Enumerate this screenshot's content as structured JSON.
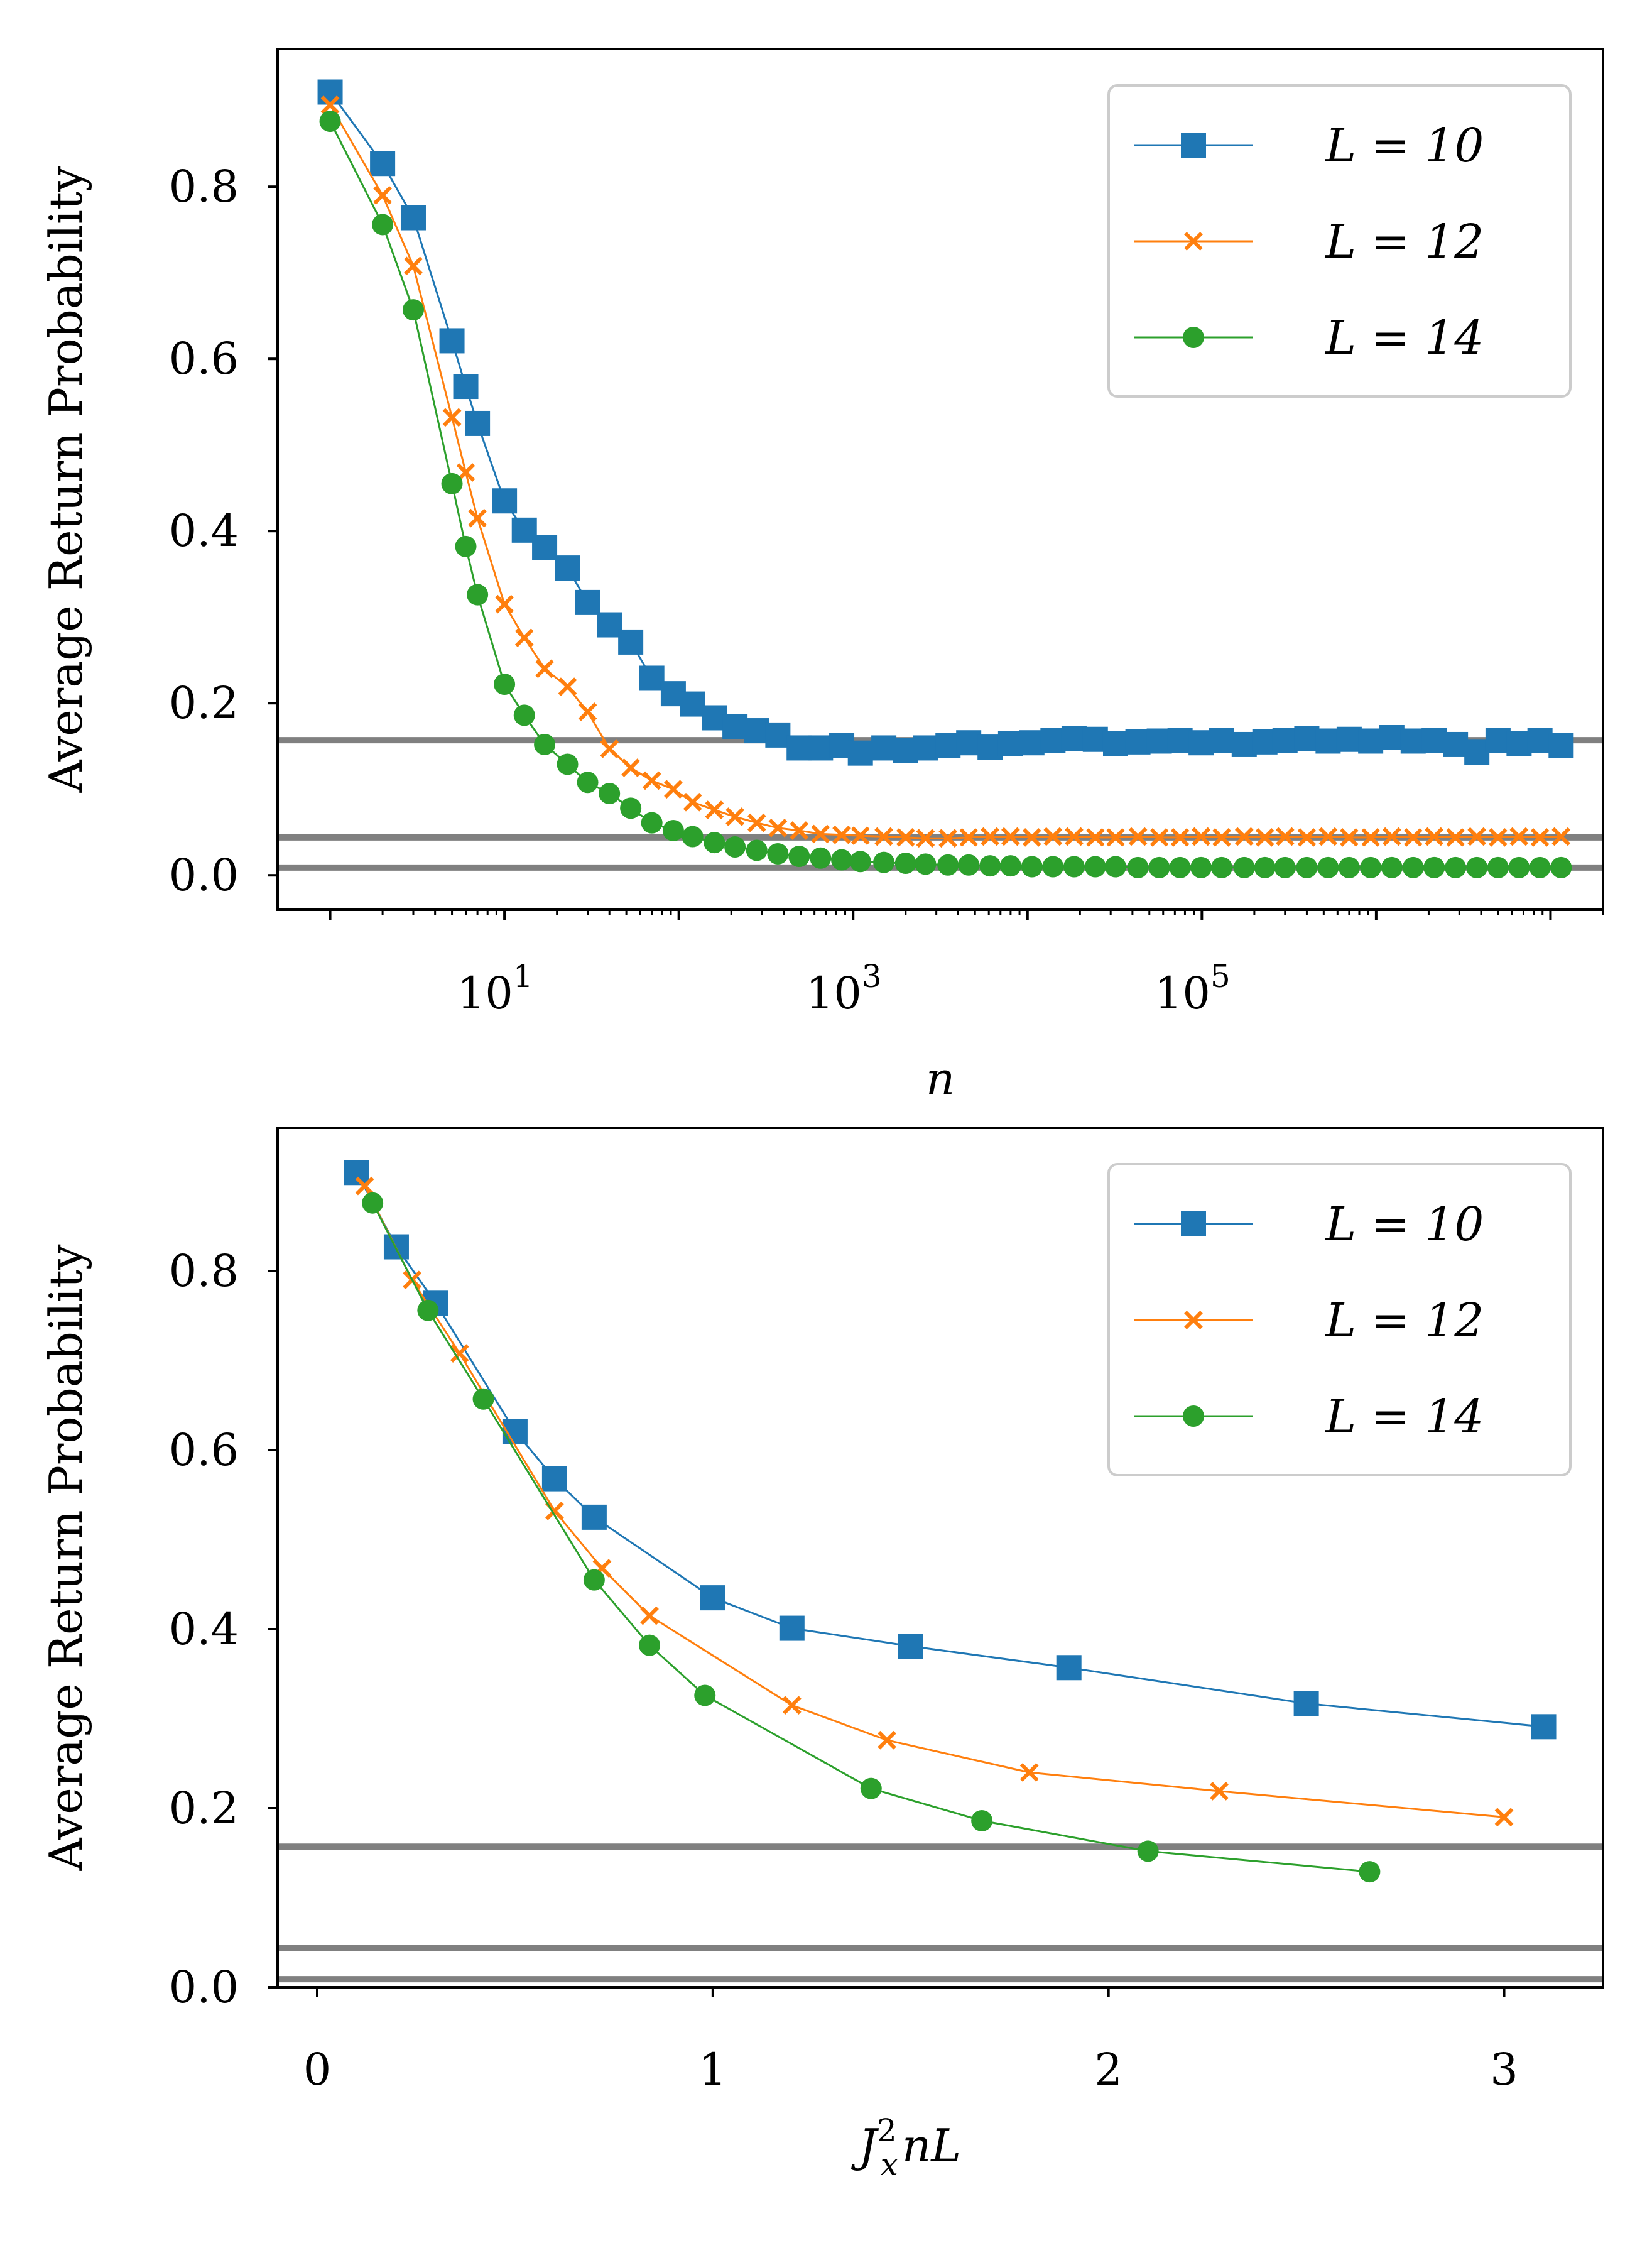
{
  "chart_data": [
    {
      "type": "line",
      "xscale": "log",
      "xlabel": "n",
      "ylabel": "Average Return Probability",
      "xlim": [
        0.5,
        20000000
      ],
      "ylim": [
        -0.04,
        0.96
      ],
      "yticks": [
        0.0,
        0.2,
        0.4,
        0.6,
        0.8
      ],
      "ytick_labels": [
        "0.0",
        "0.2",
        "0.4",
        "0.6",
        "0.8"
      ],
      "xticks": [
        10,
        1000,
        100000
      ],
      "xtick_base": [
        "10",
        "10",
        "10"
      ],
      "xtick_exp": [
        "1",
        "3",
        "5"
      ],
      "legend": [
        "L = 10",
        "L = 12",
        "L = 14"
      ],
      "legend_location": "upper right",
      "reference_lines": [
        0.157,
        0.044,
        0.009
      ],
      "series": [
        {
          "name": "L = 10",
          "color": "#1f77b4",
          "marker": "square",
          "x": [
            1,
            2,
            3,
            5,
            6,
            7,
            10,
            13,
            17,
            23,
            30,
            40,
            53,
            70,
            93,
            120,
            160,
            210,
            280,
            370,
            490,
            650,
            860,
            1100,
            1500,
            2000,
            2600,
            3500,
            4600,
            6100,
            8000,
            10600,
            14000,
            18500,
            24500,
            32000,
            43000,
            57000,
            75000,
            99000,
            130000,
            175000,
            230000,
            300000,
            400000,
            530000,
            700000,
            930000,
            1230000,
            1630000,
            2150000,
            2850000,
            3780000,
            5000000,
            6600000,
            8700000,
            11500000
          ],
          "y": [
            0.91,
            0.827,
            0.764,
            0.621,
            0.568,
            0.525,
            0.435,
            0.401,
            0.381,
            0.357,
            0.317,
            0.291,
            0.271,
            0.229,
            0.211,
            0.199,
            0.183,
            0.173,
            0.168,
            0.163,
            0.148,
            0.148,
            0.151,
            0.142,
            0.148,
            0.145,
            0.148,
            0.151,
            0.154,
            0.149,
            0.153,
            0.154,
            0.157,
            0.159,
            0.158,
            0.153,
            0.155,
            0.156,
            0.157,
            0.154,
            0.157,
            0.152,
            0.155,
            0.157,
            0.159,
            0.156,
            0.158,
            0.156,
            0.16,
            0.156,
            0.157,
            0.152,
            0.143,
            0.157,
            0.153,
            0.157,
            0.151
          ]
        },
        {
          "name": "L = 12",
          "color": "#ff7f0e",
          "marker": "x",
          "x": [
            1,
            2,
            3,
            5,
            6,
            7,
            10,
            13,
            17,
            23,
            30,
            40,
            53,
            70,
            93,
            120,
            160,
            210,
            280,
            370,
            490,
            650,
            860,
            1100,
            1500,
            2000,
            2600,
            3500,
            4600,
            6100,
            8000,
            10600,
            14000,
            18500,
            24500,
            32000,
            43000,
            57000,
            75000,
            99000,
            130000,
            175000,
            230000,
            300000,
            400000,
            530000,
            700000,
            930000,
            1230000,
            1630000,
            2150000,
            2850000,
            3780000,
            5000000,
            6600000,
            8700000,
            11500000
          ],
          "y": [
            0.895,
            0.79,
            0.708,
            0.532,
            0.468,
            0.415,
            0.315,
            0.276,
            0.24,
            0.219,
            0.19,
            0.147,
            0.125,
            0.11,
            0.1,
            0.085,
            0.076,
            0.068,
            0.061,
            0.055,
            0.052,
            0.048,
            0.047,
            0.046,
            0.045,
            0.044,
            0.043,
            0.043,
            0.044,
            0.045,
            0.045,
            0.044,
            0.045,
            0.045,
            0.044,
            0.044,
            0.045,
            0.044,
            0.044,
            0.045,
            0.044,
            0.045,
            0.044,
            0.045,
            0.044,
            0.045,
            0.044,
            0.044,
            0.045,
            0.044,
            0.045,
            0.044,
            0.045,
            0.044,
            0.045,
            0.044,
            0.045
          ]
        },
        {
          "name": "L = 14",
          "color": "#2ca02c",
          "marker": "circle",
          "x": [
            1,
            2,
            3,
            5,
            6,
            7,
            10,
            13,
            17,
            23,
            30,
            40,
            53,
            70,
            93,
            120,
            160,
            210,
            280,
            370,
            490,
            650,
            860,
            1100,
            1500,
            2000,
            2600,
            3500,
            4600,
            6100,
            8000,
            10600,
            14000,
            18500,
            24500,
            32000,
            43000,
            57000,
            75000,
            99000,
            130000,
            175000,
            230000,
            300000,
            400000,
            530000,
            700000,
            930000,
            1230000,
            1630000,
            2150000,
            2850000,
            3780000,
            5000000,
            6600000,
            8700000,
            11500000
          ],
          "y": [
            0.876,
            0.756,
            0.657,
            0.455,
            0.382,
            0.326,
            0.222,
            0.186,
            0.152,
            0.129,
            0.108,
            0.095,
            0.078,
            0.061,
            0.052,
            0.045,
            0.038,
            0.033,
            0.029,
            0.025,
            0.022,
            0.02,
            0.018,
            0.016,
            0.015,
            0.014,
            0.013,
            0.012,
            0.012,
            0.011,
            0.011,
            0.01,
            0.01,
            0.01,
            0.01,
            0.01,
            0.009,
            0.009,
            0.009,
            0.009,
            0.009,
            0.009,
            0.009,
            0.009,
            0.009,
            0.009,
            0.009,
            0.009,
            0.009,
            0.009,
            0.009,
            0.009,
            0.009,
            0.009,
            0.009,
            0.009,
            0.009
          ]
        }
      ]
    },
    {
      "type": "line",
      "xscale": "linear",
      "xlabel": "J_x^2 n L",
      "ylabel": "Average Return Probability",
      "xlim": [
        -0.1,
        3.25
      ],
      "ylim": [
        0.0,
        0.96
      ],
      "yticks": [
        0.0,
        0.2,
        0.4,
        0.6,
        0.8
      ],
      "ytick_labels": [
        "0.0",
        "0.2",
        "0.4",
        "0.6",
        "0.8"
      ],
      "xticks": [
        0,
        1,
        2,
        3
      ],
      "xtick_labels": [
        "0",
        "1",
        "2",
        "3"
      ],
      "legend": [
        "L = 10",
        "L = 12",
        "L = 14"
      ],
      "legend_location": "upper right",
      "reference_lines": [
        0.157,
        0.044,
        0.009
      ],
      "series": [
        {
          "name": "L = 10",
          "color": "#1f77b4",
          "marker": "square",
          "x": [
            0.1,
            0.2,
            0.3,
            0.5,
            0.6,
            0.7,
            1.0,
            1.2,
            1.5,
            1.9,
            2.5,
            3.1
          ],
          "y": [
            0.91,
            0.827,
            0.764,
            0.621,
            0.568,
            0.525,
            0.435,
            0.401,
            0.381,
            0.357,
            0.317,
            0.291
          ]
        },
        {
          "name": "L = 12",
          "color": "#ff7f0e",
          "marker": "x",
          "x": [
            0.12,
            0.24,
            0.36,
            0.6,
            0.72,
            0.84,
            1.2,
            1.44,
            1.8,
            2.28,
            3.0
          ],
          "y": [
            0.895,
            0.79,
            0.708,
            0.532,
            0.468,
            0.415,
            0.315,
            0.276,
            0.24,
            0.219,
            0.19
          ]
        },
        {
          "name": "L = 14",
          "color": "#2ca02c",
          "marker": "circle",
          "x": [
            0.14,
            0.28,
            0.42,
            0.7,
            0.84,
            0.98,
            1.4,
            1.68,
            2.1,
            2.66
          ],
          "y": [
            0.876,
            0.756,
            0.657,
            0.455,
            0.382,
            0.326,
            0.222,
            0.186,
            0.152,
            0.129
          ]
        }
      ]
    }
  ],
  "colors": {
    "reference_line": "#808080",
    "frame": "#000000",
    "legend_border": "#cccccc"
  }
}
